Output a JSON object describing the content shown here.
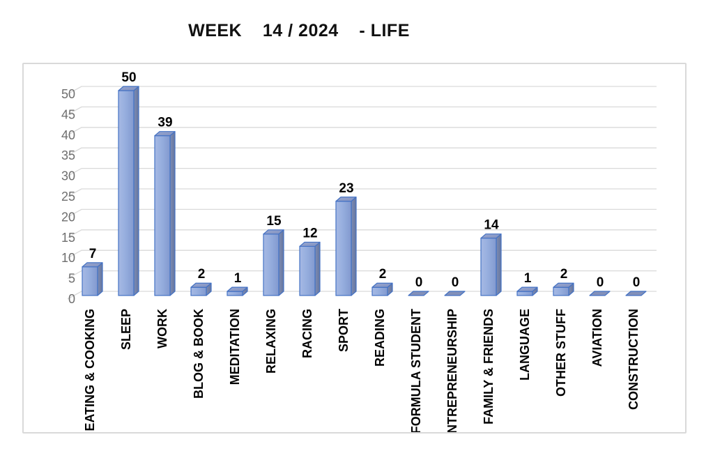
{
  "chart_data": {
    "type": "bar",
    "variant": "3d-column",
    "title": "WEEK    14 / 2024    - LIFE",
    "categories": [
      "EATING & COOKING",
      "SLEEP",
      "WORK",
      "BLOG & BOOK",
      "MEDITATION",
      "RELAXING",
      "RACING",
      "SPORT",
      "READING",
      "FORMULA STUDENT",
      "ENTREPRENEURSHIP",
      "FAMILY & FRIENDS",
      "LANGUAGE",
      "OTHER STUFF",
      "AVIATION",
      "CONSTRUCTION"
    ],
    "values": [
      7,
      50,
      39,
      2,
      1,
      15,
      12,
      23,
      2,
      0,
      0,
      14,
      1,
      2,
      0,
      0
    ],
    "data_labels": [
      7,
      50,
      39,
      2,
      1,
      15,
      12,
      23,
      2,
      0,
      0,
      14,
      1,
      2,
      0,
      0
    ],
    "xlabel": "",
    "ylabel": "",
    "ylim": [
      0,
      50
    ],
    "yticks": [
      0,
      5,
      10,
      15,
      20,
      25,
      30,
      35,
      40,
      45,
      50
    ],
    "grid": true,
    "legend": "none",
    "colors": {
      "bar_front_light": "#A6B9E4",
      "bar_front": "#8FAADC",
      "bar_top": "#8C9CC9",
      "bar_side": "#6F7FA8",
      "bar_zero": "#8290B9",
      "bar_border": "#4472C4",
      "gridline": "#D9D9D9",
      "chart_border": "#D9D9D9",
      "tick_label": "#6E6E6E",
      "data_label": "#000000",
      "category_label": "#000000",
      "title": "#111111",
      "background": "#FFFFFF"
    }
  }
}
